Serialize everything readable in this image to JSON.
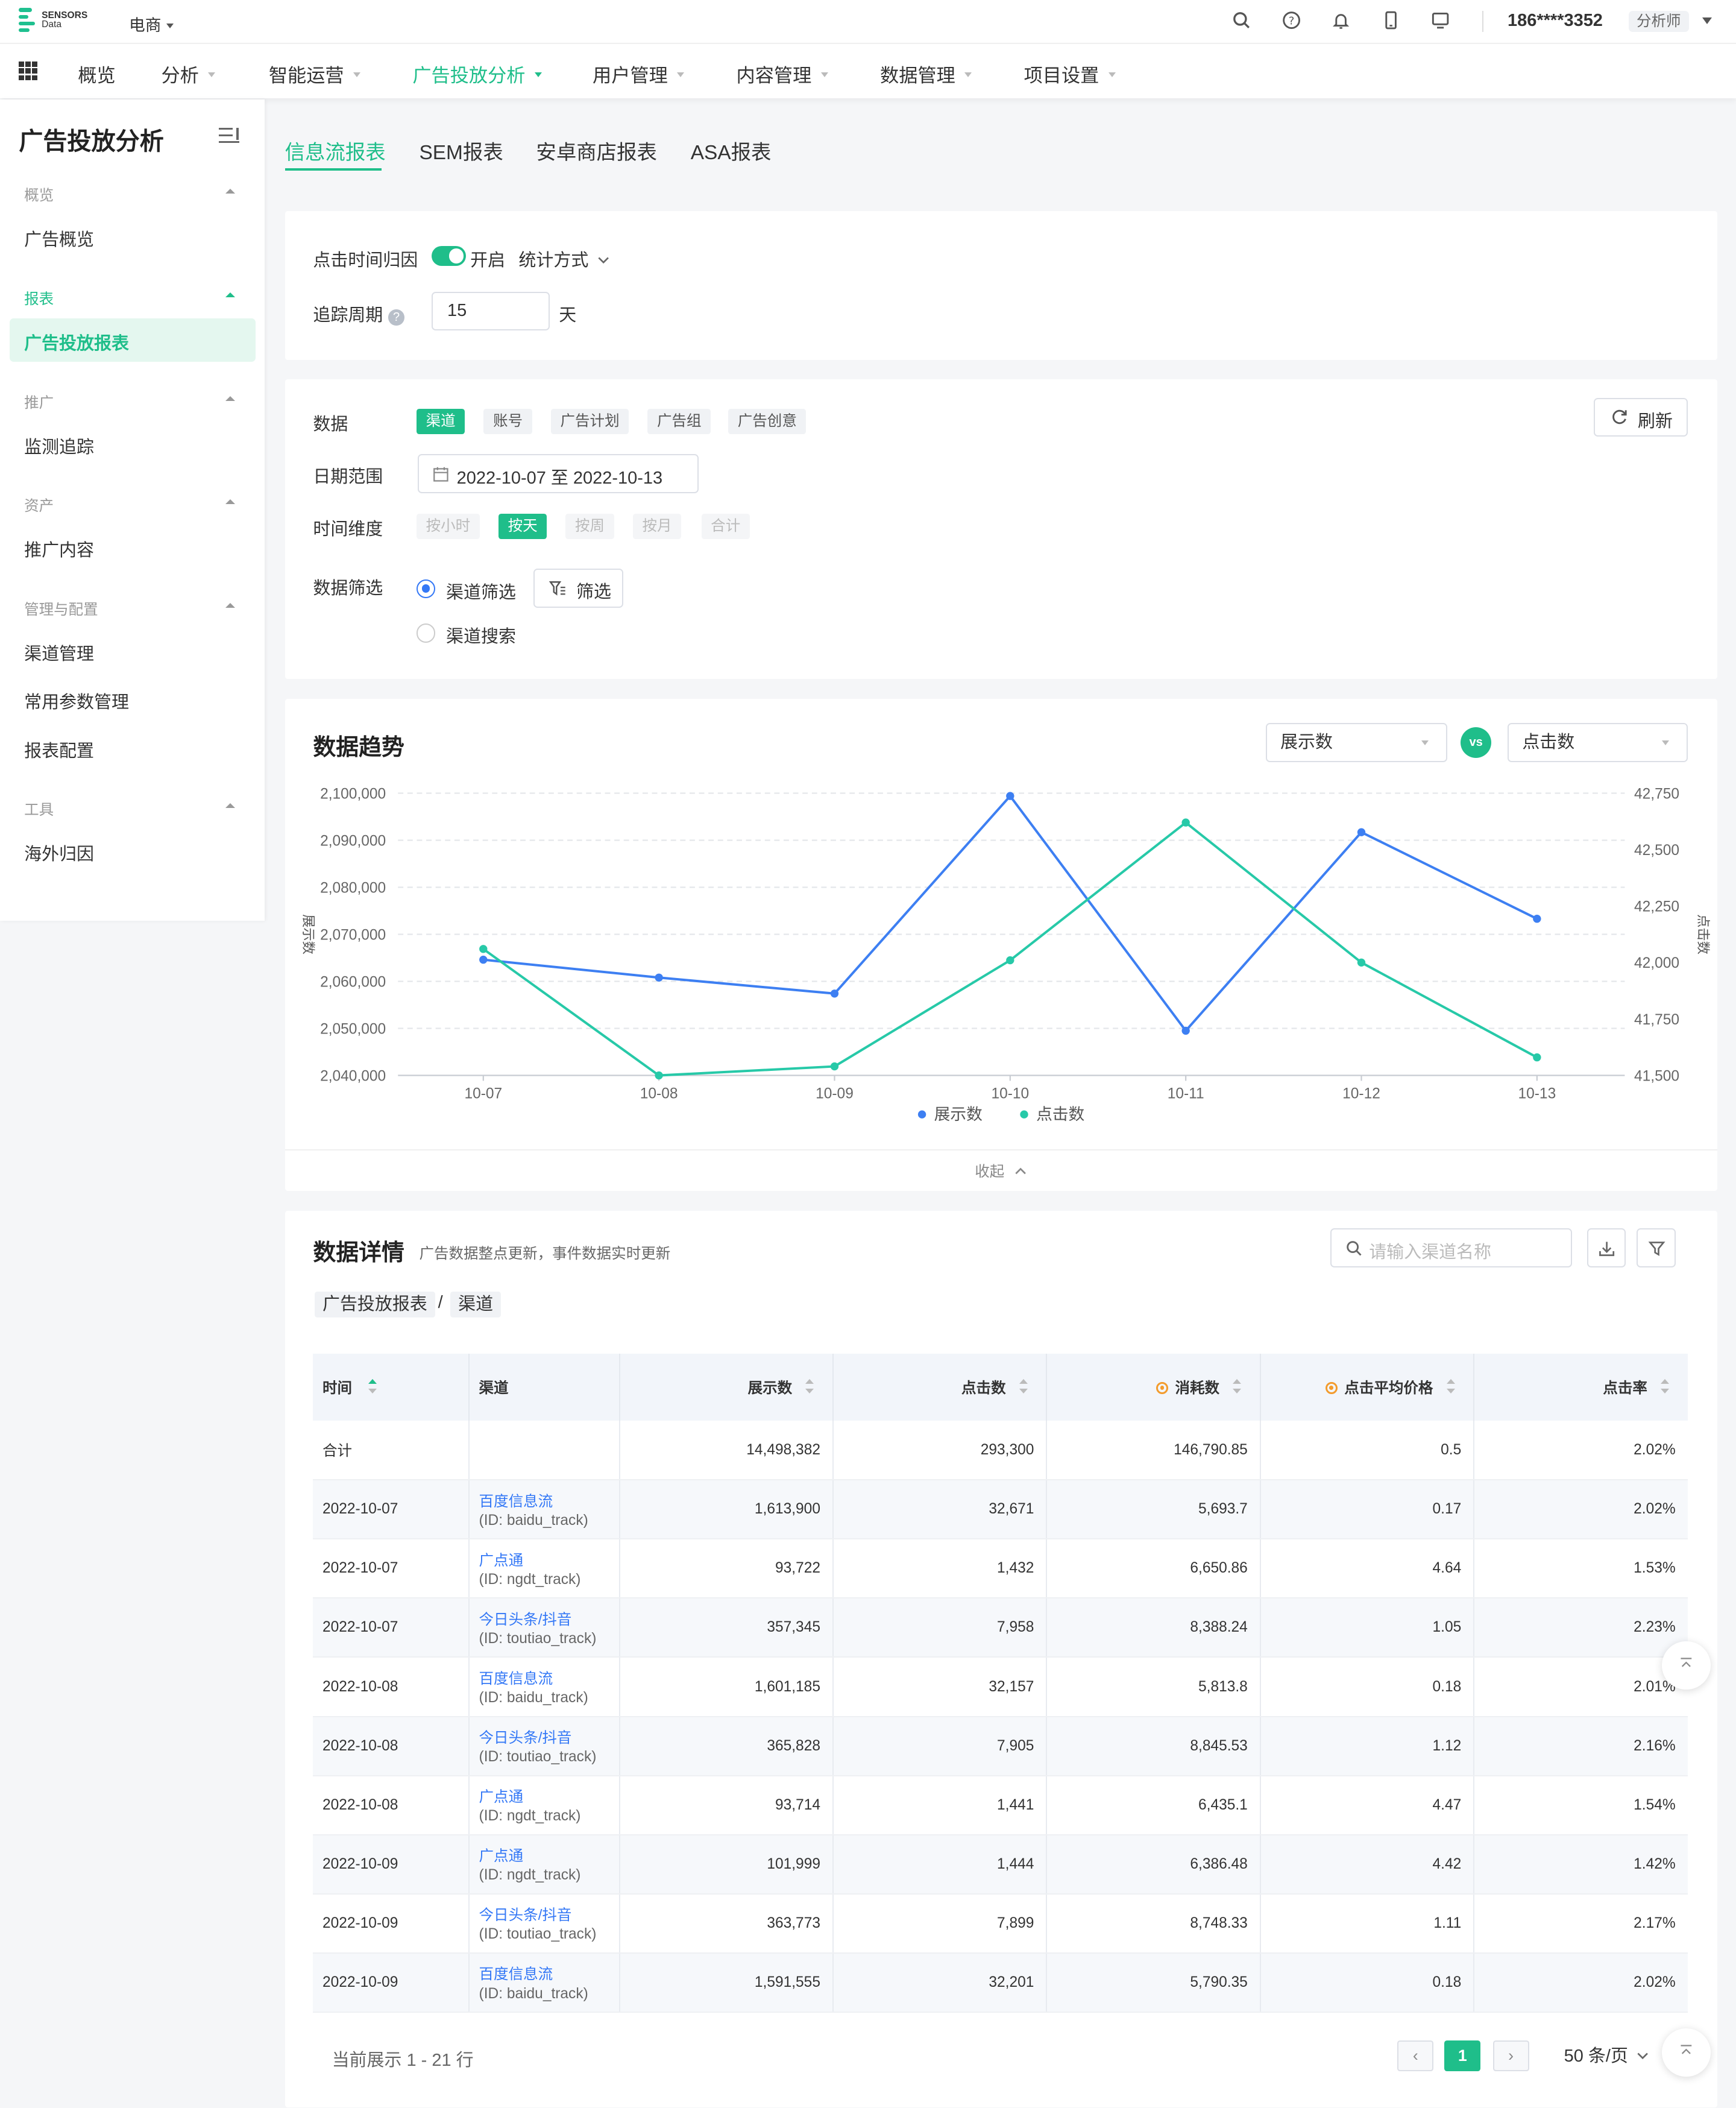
{
  "brand": {
    "line1": "SENSORS",
    "line2": "Data"
  },
  "project": "电商",
  "header": {
    "phone": "186****3352",
    "role": "分析师"
  },
  "nav": [
    "概览",
    "分析",
    "智能运营",
    "广告投放分析",
    "用户管理",
    "内容管理",
    "数据管理",
    "项目设置"
  ],
  "sidebar": {
    "title": "广告投放分析",
    "groups": [
      {
        "label": "概览",
        "items": [
          "广告概览"
        ]
      },
      {
        "label": "报表",
        "items": [
          "广告投放报表"
        ]
      },
      {
        "label": "推广",
        "items": [
          "监测追踪"
        ]
      },
      {
        "label": "资产",
        "items": [
          "推广内容"
        ]
      },
      {
        "label": "管理与配置",
        "items": [
          "渠道管理",
          "常用参数管理",
          "报表配置"
        ]
      },
      {
        "label": "工具",
        "items": [
          "海外归因"
        ]
      }
    ]
  },
  "tabs": [
    "信息流报表",
    "SEM报表",
    "安卓商店报表",
    "ASA报表"
  ],
  "settings": {
    "click_time_label": "点击时间归因",
    "toggle_label": "开启",
    "stat_method": "统计方式",
    "track_period_label": "追踪周期",
    "track_period_value": "15",
    "track_period_unit": "天"
  },
  "filters": {
    "data_label": "数据",
    "data_options": [
      "渠道",
      "账号",
      "广告计划",
      "广告组",
      "广告创意"
    ],
    "refresh": "刷新",
    "date_label": "日期范围",
    "date_value": "2022-10-07 至 2022-10-13",
    "dim_label": "时间维度",
    "dim_options": [
      "按小时",
      "按天",
      "按周",
      "按月",
      "合计"
    ],
    "filter_label": "数据筛选",
    "radio1": "渠道筛选",
    "radio2": "渠道搜索",
    "filter_btn": "筛选"
  },
  "trend": {
    "title": "数据趋势",
    "metric_left": "展示数",
    "vs": "vs",
    "metric_right": "点击数",
    "collapse": "收起"
  },
  "chart_data": {
    "type": "line",
    "x": [
      "10-07",
      "10-08",
      "10-09",
      "10-10",
      "10-11",
      "10-12",
      "10-13"
    ],
    "series": [
      {
        "name": "展示数",
        "axis": "left",
        "color": "#3d7ff2",
        "values": [
          2064600,
          2060800,
          2057400,
          2099400,
          2049500,
          2091700,
          2073300
        ]
      },
      {
        "name": "点击数",
        "axis": "right",
        "color": "#27c9a8",
        "values": [
          42060,
          41500,
          41540,
          42010,
          42620,
          42000,
          41580
        ]
      }
    ],
    "ylabel": "展示数",
    "y2label": "点击数",
    "ylim": [
      2040000,
      2100000
    ],
    "y2lim": [
      41500,
      42750
    ],
    "yticks": [
      "2,100,000",
      "2,090,000",
      "2,080,000",
      "2,070,000",
      "2,060,000",
      "2,050,000",
      "2,040,000"
    ],
    "y2ticks": [
      "42,750",
      "42,500",
      "42,250",
      "42,000",
      "41,750",
      "41,500"
    ],
    "legend": "bottom",
    "grid": true
  },
  "detail": {
    "title": "数据详情",
    "subtitle": "广告数据整点更新，事件数据实时更新",
    "search_placeholder": "请输入渠道名称",
    "crumb1": "广告投放报表",
    "crumb_sep": "/",
    "crumb2": "渠道",
    "columns": [
      "时间",
      "渠道",
      "展示数",
      "点击数",
      "消耗数",
      "点击平均价格",
      "点击率"
    ],
    "total": [
      "合计",
      "",
      "14,498,382",
      "293,300",
      "146,790.85",
      "0.5",
      "2.02%"
    ],
    "rows": [
      [
        "2022-10-07",
        "百度信息流",
        "(ID: baidu_track)",
        "1,613,900",
        "32,671",
        "5,693.7",
        "0.17",
        "2.02%"
      ],
      [
        "2022-10-07",
        "广点通",
        "(ID: ngdt_track)",
        "93,722",
        "1,432",
        "6,650.86",
        "4.64",
        "1.53%"
      ],
      [
        "2022-10-07",
        "今日头条/抖音",
        "(ID: toutiao_track)",
        "357,345",
        "7,958",
        "8,388.24",
        "1.05",
        "2.23%"
      ],
      [
        "2022-10-08",
        "百度信息流",
        "(ID: baidu_track)",
        "1,601,185",
        "32,157",
        "5,813.8",
        "0.18",
        "2.01%"
      ],
      [
        "2022-10-08",
        "今日头条/抖音",
        "(ID: toutiao_track)",
        "365,828",
        "7,905",
        "8,845.53",
        "1.12",
        "2.16%"
      ],
      [
        "2022-10-08",
        "广点通",
        "(ID: ngdt_track)",
        "93,714",
        "1,441",
        "6,435.1",
        "4.47",
        "1.54%"
      ],
      [
        "2022-10-09",
        "广点通",
        "(ID: ngdt_track)",
        "101,999",
        "1,444",
        "6,386.48",
        "4.42",
        "1.42%"
      ],
      [
        "2022-10-09",
        "今日头条/抖音",
        "(ID: toutiao_track)",
        "363,773",
        "7,899",
        "8,748.33",
        "1.11",
        "2.17%"
      ],
      [
        "2022-10-09",
        "百度信息流",
        "(ID: baidu_track)",
        "1,591,555",
        "32,201",
        "5,790.35",
        "0.18",
        "2.02%"
      ]
    ],
    "pager_info": "当前展示 1 - 21 行",
    "page": "1",
    "page_size": "50 条/页"
  }
}
